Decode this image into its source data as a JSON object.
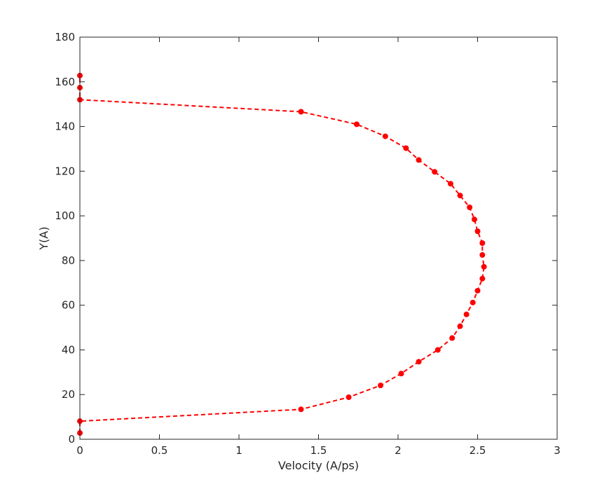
{
  "chart_data": {
    "type": "line",
    "title": "",
    "xlabel": "Velocity (A/ps)",
    "ylabel": "Y(A)",
    "xlim": [
      0,
      3
    ],
    "ylim": [
      0,
      180
    ],
    "xticks": [
      0,
      0.5,
      1,
      1.5,
      2,
      2.5,
      3
    ],
    "xtick_labels": [
      "0",
      "0.5",
      "1",
      "1.5",
      "2",
      "2.5",
      "3"
    ],
    "yticks": [
      0,
      20,
      40,
      60,
      80,
      100,
      120,
      140,
      160,
      180
    ],
    "ytick_labels": [
      "0",
      "20",
      "40",
      "60",
      "80",
      "100",
      "120",
      "140",
      "160",
      "180"
    ],
    "grid": false,
    "series": [
      {
        "color": "#ff0000",
        "line_style": "dashed",
        "marker": "circle",
        "x": [
          0,
          0,
          1.39,
          1.69,
          1.89,
          2.02,
          2.13,
          2.25,
          2.34,
          2.39,
          2.43,
          2.47,
          2.5,
          2.53,
          2.54,
          2.53,
          2.53,
          2.5,
          2.48,
          2.45,
          2.39,
          2.33,
          2.23,
          2.13,
          2.05,
          1.92,
          1.74,
          1.39,
          0,
          0,
          0
        ],
        "y": [
          2.8,
          8.1,
          13.4,
          18.8,
          24.1,
          29.4,
          34.7,
          40.0,
          45.3,
          50.6,
          55.9,
          61.2,
          66.5,
          71.9,
          77.2,
          82.5,
          87.8,
          93.1,
          98.4,
          103.8,
          109.1,
          114.4,
          119.7,
          125.0,
          130.3,
          135.6,
          141.0,
          146.6,
          152.0,
          157.4,
          162.8
        ]
      }
    ]
  }
}
